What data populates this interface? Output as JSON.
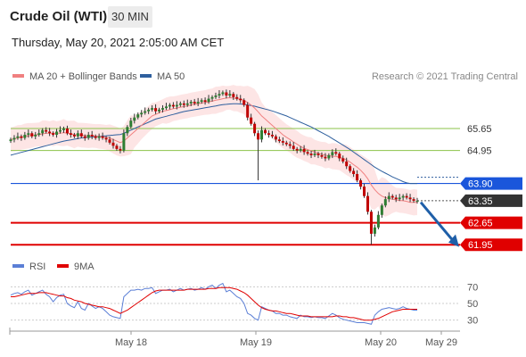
{
  "header": {
    "title": "Crude Oil (WTI)",
    "timeframe": "30 MIN",
    "datetime": "Thursday, May 20, 2021 2:05:00 AM CET"
  },
  "legend": {
    "items": [
      {
        "label": "MA 20 + Bollinger Bands",
        "color": "#f08080"
      },
      {
        "label": "MA 50",
        "color": "#2e5f9e"
      }
    ],
    "credit": "Research © 2021 Trading Central"
  },
  "rsi_legend": {
    "items": [
      {
        "label": "RSI",
        "color": "#5b7fd6"
      },
      {
        "label": "9MA",
        "color": "#e00000"
      }
    ]
  },
  "colors": {
    "up_candle": "#2e7d32",
    "down_candle": "#c00000",
    "bollinger_fill": "#fde0e0",
    "ma20": "#f08080",
    "ma50": "#2e5f9e",
    "pivot": "#1a56db",
    "support": "#e00000",
    "resistance": "#8bc34a",
    "last_price": "#333333"
  },
  "chart_data": [
    {
      "type": "candlestick",
      "title": "Crude Oil (WTI) 30 MIN",
      "ylim": [
        61.7,
        66.9
      ],
      "x_ticks": [
        "May 18",
        "May 19",
        "May 20",
        "May 29"
      ],
      "levels": [
        {
          "value": 65.65,
          "label": "65.65",
          "role": "resistance"
        },
        {
          "value": 64.95,
          "label": "64.95",
          "role": "resistance"
        },
        {
          "value": 63.9,
          "label": "63.90",
          "role": "pivot"
        },
        {
          "value": 63.35,
          "label": "63.35",
          "role": "last"
        },
        {
          "value": 62.65,
          "label": "62.65",
          "role": "support"
        },
        {
          "value": 61.95,
          "label": "61.95",
          "role": "support"
        }
      ],
      "close": [
        65.3,
        65.35,
        65.4,
        65.35,
        65.45,
        65.5,
        65.4,
        65.45,
        65.5,
        65.6,
        65.55,
        65.5,
        65.45,
        65.55,
        65.6,
        65.65,
        65.5,
        65.45,
        65.4,
        65.5,
        65.4,
        65.35,
        65.45,
        65.4,
        65.35,
        65.4,
        65.35,
        65.3,
        65.2,
        65.1,
        65.0,
        64.95,
        65.5,
        65.7,
        65.9,
        66.0,
        66.1,
        66.15,
        66.2,
        66.25,
        66.3,
        66.2,
        66.25,
        66.3,
        66.35,
        66.4,
        66.35,
        66.4,
        66.45,
        66.4,
        66.45,
        66.5,
        66.45,
        66.5,
        66.55,
        66.5,
        66.6,
        66.65,
        66.7,
        66.75,
        66.8,
        66.7,
        66.75,
        66.65,
        66.6,
        66.55,
        66.4,
        66.0,
        65.8,
        65.5,
        65.3,
        65.6,
        65.5,
        65.45,
        65.4,
        65.3,
        65.25,
        65.2,
        65.15,
        65.1,
        65.0,
        64.95,
        65.0,
        64.9,
        64.85,
        64.8,
        64.85,
        64.8,
        64.75,
        64.7,
        64.8,
        64.9,
        64.85,
        64.7,
        64.6,
        64.45,
        64.3,
        64.2,
        64.0,
        63.8,
        63.5,
        63.0,
        62.3,
        62.5,
        62.9,
        63.2,
        63.4,
        63.5,
        63.45,
        63.4,
        63.45,
        63.5,
        63.45,
        63.4,
        63.35,
        63.35
      ],
      "ma20": [
        65.3,
        65.32,
        65.35,
        65.37,
        65.4,
        65.42,
        65.43,
        65.45,
        65.46,
        65.48,
        65.5,
        65.5,
        65.5,
        65.5,
        65.5,
        65.52,
        65.5,
        65.48,
        65.46,
        65.45,
        65.44,
        65.43,
        65.42,
        65.42,
        65.41,
        65.4,
        65.39,
        65.37,
        65.35,
        65.3,
        65.25,
        65.2,
        65.25,
        65.35,
        65.45,
        65.55,
        65.65,
        65.75,
        65.85,
        65.95,
        66.05,
        66.1,
        66.15,
        66.2,
        66.22,
        66.25,
        66.28,
        66.3,
        66.33,
        66.35,
        66.37,
        66.4,
        66.42,
        66.44,
        66.46,
        66.48,
        66.5,
        66.52,
        66.55,
        66.57,
        66.6,
        66.62,
        66.63,
        66.62,
        66.6,
        66.58,
        66.55,
        66.48,
        66.4,
        66.3,
        66.18,
        66.05,
        65.95,
        65.85,
        65.75,
        65.65,
        65.55,
        65.45,
        65.37,
        65.3,
        65.22,
        65.15,
        65.08,
        65.02,
        64.98,
        64.94,
        64.9,
        64.86,
        64.83,
        64.8,
        64.78,
        64.77,
        64.76,
        64.73,
        64.7,
        64.65,
        64.58,
        64.5,
        64.42,
        64.32,
        64.2,
        64.05,
        63.85,
        63.7,
        63.58,
        63.5,
        63.45,
        63.42,
        63.4,
        63.38,
        63.36,
        63.35,
        63.33,
        63.3,
        63.3,
        63.3
      ],
      "ma50": [
        64.8,
        64.83,
        64.86,
        64.89,
        64.92,
        64.95,
        64.98,
        65.01,
        65.04,
        65.07,
        65.1,
        65.13,
        65.16,
        65.19,
        65.22,
        65.25,
        65.27,
        65.29,
        65.31,
        65.33,
        65.35,
        65.36,
        65.37,
        65.38,
        65.39,
        65.4,
        65.41,
        65.42,
        65.43,
        65.44,
        65.45,
        65.46,
        65.5,
        65.55,
        65.6,
        65.65,
        65.7,
        65.75,
        65.8,
        65.85,
        65.9,
        65.95,
        65.98,
        66.01,
        66.04,
        66.07,
        66.1,
        66.13,
        66.16,
        66.19,
        66.21,
        66.23,
        66.25,
        66.27,
        66.29,
        66.31,
        66.33,
        66.35,
        66.37,
        66.39,
        66.41,
        66.42,
        66.43,
        66.44,
        66.44,
        66.43,
        66.42,
        66.4,
        66.38,
        66.36,
        66.33,
        66.3,
        66.27,
        66.24,
        66.21,
        66.17,
        66.13,
        66.09,
        66.05,
        66.0,
        65.95,
        65.9,
        65.85,
        65.8,
        65.75,
        65.7,
        65.64,
        65.58,
        65.52,
        65.46,
        65.4,
        65.33,
        65.26,
        65.19,
        65.12,
        65.05,
        64.98,
        64.9,
        64.82,
        64.74,
        64.66,
        64.58,
        64.5,
        64.42,
        64.35,
        64.29,
        64.23,
        64.17,
        64.11,
        64.06,
        64.01,
        63.96,
        63.92,
        63.9,
        63.9,
        63.9
      ]
    },
    {
      "type": "line",
      "title": "RSI",
      "ylim": [
        20,
        80
      ],
      "y_ticks": [
        70,
        50,
        30
      ],
      "series": [
        {
          "name": "RSI",
          "values": [
            60,
            62,
            63,
            61,
            64,
            66,
            60,
            62,
            64,
            66,
            61,
            58,
            52,
            57,
            60,
            61,
            50,
            47,
            45,
            52,
            44,
            42,
            50,
            47,
            44,
            46,
            44,
            40,
            36,
            34,
            33,
            32,
            58,
            62,
            66,
            66,
            67,
            66,
            68,
            68,
            69,
            62,
            64,
            66,
            66,
            67,
            64,
            66,
            68,
            66,
            67,
            68,
            66,
            67,
            69,
            67,
            70,
            72,
            68,
            72,
            74,
            64,
            66,
            62,
            58,
            56,
            50,
            38,
            36,
            32,
            30,
            46,
            44,
            42,
            41,
            38,
            38,
            36,
            36,
            34,
            33,
            32,
            36,
            34,
            34,
            33,
            34,
            33,
            33,
            32,
            35,
            38,
            36,
            33,
            31,
            30,
            29,
            28,
            27,
            27,
            27,
            26,
            25,
            36,
            40,
            43,
            44,
            45,
            44,
            43,
            44,
            46,
            44,
            43,
            42,
            42
          ]
        },
        {
          "name": "9MA",
          "values": [
            58,
            58,
            59,
            60,
            61,
            62,
            62,
            62,
            63,
            63,
            63,
            62,
            61,
            60,
            59,
            59,
            57,
            56,
            54,
            53,
            52,
            50,
            49,
            48,
            47,
            46,
            46,
            45,
            44,
            42,
            40,
            38,
            40,
            42,
            45,
            48,
            51,
            54,
            57,
            60,
            63,
            65,
            66,
            66,
            66,
            66,
            66,
            66,
            66,
            66,
            67,
            67,
            67,
            67,
            67,
            67,
            68,
            68,
            68,
            69,
            69,
            69,
            69,
            68,
            67,
            65,
            63,
            60,
            56,
            52,
            48,
            45,
            43,
            42,
            41,
            41,
            40,
            39,
            38,
            38,
            37,
            36,
            35,
            35,
            35,
            34,
            34,
            34,
            34,
            34,
            34,
            34,
            35,
            35,
            34,
            34,
            33,
            33,
            32,
            31,
            30,
            30,
            30,
            31,
            32,
            34,
            36,
            38,
            40,
            41,
            42,
            43,
            43,
            43,
            43,
            43
          ]
        }
      ]
    }
  ],
  "x_axis": {
    "ticks": [
      "May 18",
      "May 19",
      "May 20",
      "May 29"
    ]
  }
}
